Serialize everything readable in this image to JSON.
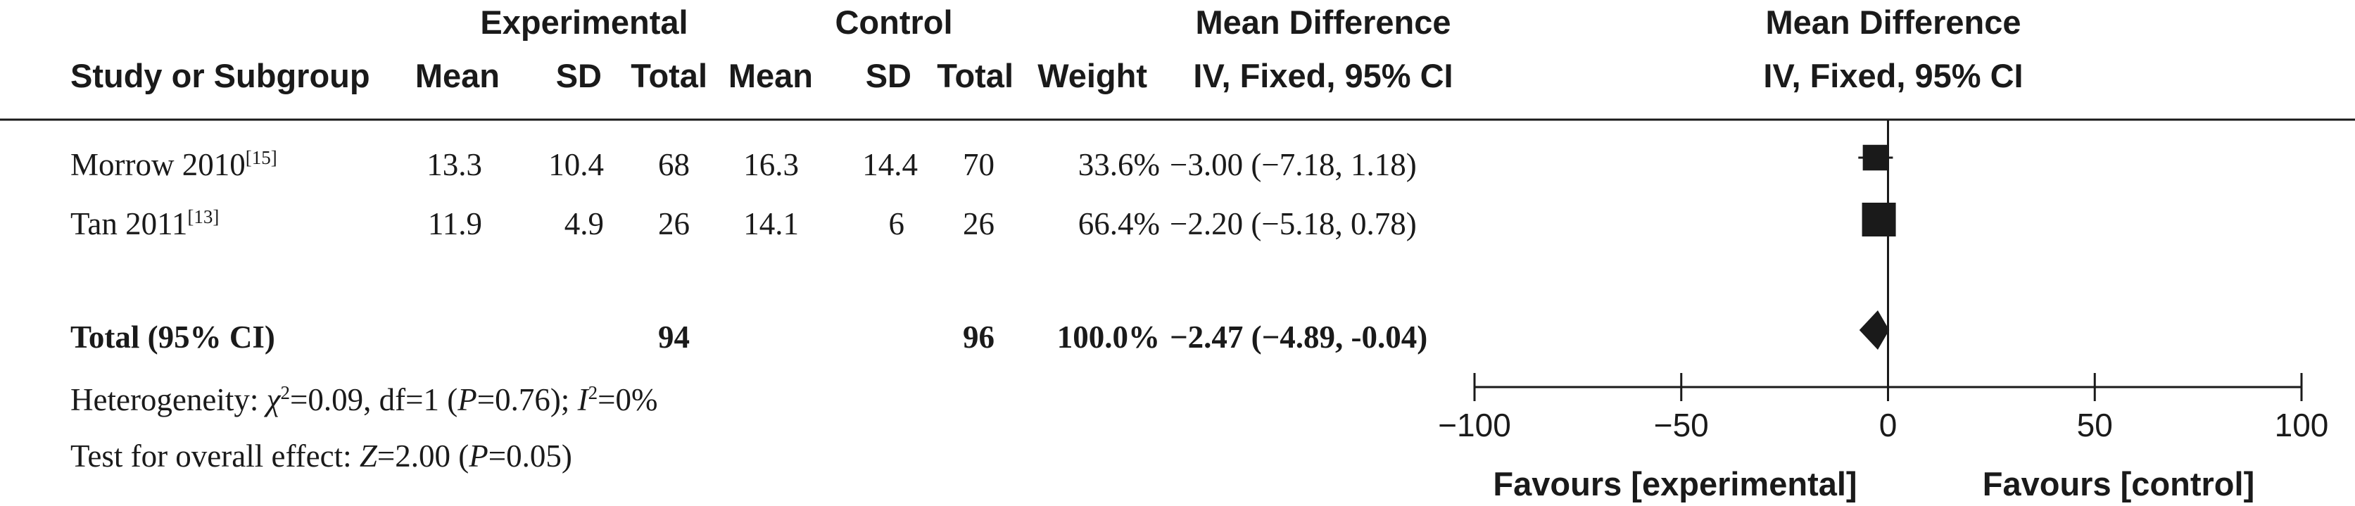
{
  "chart_data": {
    "type": "forest",
    "columns": {
      "group_experimental": "Experimental",
      "group_control": "Control",
      "group_mean_difference": "Mean Difference",
      "study": "Study or Subgroup",
      "mean_e": "Mean",
      "sd_e": "SD",
      "total_e": "Total",
      "mean_c": "Mean",
      "sd_c": "SD",
      "total_c": "Total",
      "weight": "Weight",
      "method": "IV, Fixed, 95% CI"
    },
    "plot_header": {
      "title": "Mean Difference",
      "method": "IV, Fixed, 95% CI"
    },
    "studies": [
      {
        "name": "Morrow 2010",
        "ref": "[15]",
        "mean_e": "13.3",
        "sd_e": "10.4",
        "total_e": "68",
        "mean_c": "16.3",
        "sd_c": "14.4",
        "total_c": "70",
        "weight": "33.6%",
        "ci_text": "−3.00 (−7.18, 1.18)",
        "md": -3.0,
        "lower": -7.18,
        "upper": 1.18,
        "weight_value": 33.6
      },
      {
        "name": "Tan 2011",
        "ref": "[13]",
        "mean_e": "11.9",
        "sd_e": "4.9",
        "total_e": "26",
        "mean_c": "14.1",
        "sd_c": "6",
        "total_c": "26",
        "weight": "66.4%",
        "ci_text": "−2.20 (−5.18, 0.78)",
        "md": -2.2,
        "lower": -5.18,
        "upper": 0.78,
        "weight_value": 66.4
      }
    ],
    "total": {
      "label": "Total (95% CI)",
      "total_e": "94",
      "total_c": "96",
      "weight": "100.0%",
      "ci_text": "−2.47 (−4.89, -0.04)",
      "md": -2.47,
      "lower": -4.89,
      "upper": -0.04
    },
    "heterogeneity": {
      "prefix": "Heterogeneity: ",
      "chi_symbol": "χ",
      "chi_exp": "2",
      "chi_rest": "=0.09, df=1 (",
      "p_symbol": "P",
      "p_rest": "=0.76); ",
      "i_symbol": "I",
      "i_exp": "2",
      "i_rest": "=0%"
    },
    "overall_effect": {
      "prefix": "Test for overall effect: ",
      "z_symbol": "Z",
      "z_rest": "=2.00 (",
      "p_symbol": "P",
      "p_rest": "=0.05)"
    },
    "axis": {
      "xlim": [
        -100,
        100
      ],
      "ticks": [
        -100,
        -50,
        0,
        50,
        100
      ],
      "tick_labels": [
        "−100",
        "−50",
        "0",
        "50",
        "100"
      ],
      "null_line": 0,
      "favours_left": "Favours [experimental]",
      "favours_right": "Favours [control]"
    }
  }
}
